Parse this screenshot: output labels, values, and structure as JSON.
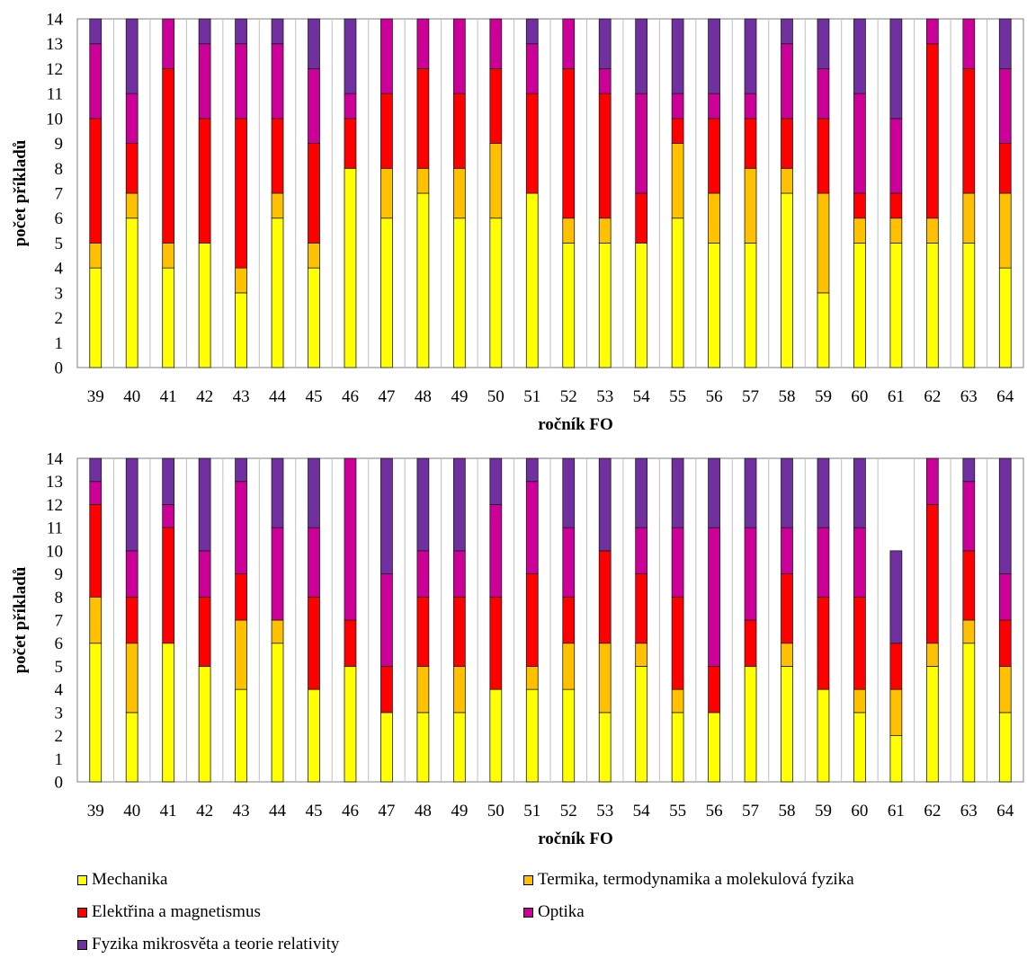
{
  "chart_data": [
    {
      "type": "bar",
      "stacked": true,
      "title": "",
      "xlabel": "ročník FO",
      "ylabel": "počet příkladů",
      "ylim": [
        0,
        14
      ],
      "yticks": [
        0,
        1,
        2,
        3,
        4,
        5,
        6,
        7,
        8,
        9,
        10,
        11,
        12,
        13,
        14
      ],
      "grid": "vertical",
      "categories": [
        "39",
        "40",
        "41",
        "42",
        "43",
        "44",
        "45",
        "46",
        "47",
        "48",
        "49",
        "50",
        "51",
        "52",
        "53",
        "54",
        "55",
        "56",
        "57",
        "58",
        "59",
        "60",
        "61",
        "62",
        "63",
        "64"
      ],
      "series": [
        {
          "name": "Mechanika",
          "values": [
            4,
            6,
            4,
            5,
            3,
            6,
            4,
            8,
            6,
            7,
            6,
            6,
            7,
            5,
            5,
            5,
            6,
            5,
            5,
            7,
            3,
            5,
            5,
            5,
            5,
            4
          ]
        },
        {
          "name": "Termika, termodynamika a molekulová fyzika",
          "values": [
            1,
            1,
            1,
            0,
            1,
            1,
            1,
            0,
            2,
            1,
            2,
            3,
            0,
            1,
            1,
            0,
            3,
            2,
            3,
            1,
            4,
            1,
            1,
            1,
            2,
            3
          ]
        },
        {
          "name": "Elektřina a magnetismus",
          "values": [
            5,
            2,
            7,
            5,
            6,
            3,
            4,
            2,
            3,
            4,
            3,
            3,
            4,
            6,
            5,
            2,
            1,
            3,
            2,
            2,
            3,
            1,
            1,
            7,
            5,
            2
          ]
        },
        {
          "name": "Optika",
          "values": [
            3,
            2,
            2,
            3,
            3,
            3,
            3,
            1,
            3,
            2,
            3,
            2,
            2,
            2,
            1,
            4,
            1,
            1,
            1,
            3,
            2,
            4,
            3,
            1,
            2,
            3
          ]
        },
        {
          "name": "Fyzika mikrosvěta a teorie relativity",
          "values": [
            1,
            3,
            0,
            1,
            1,
            1,
            2,
            3,
            0,
            0,
            0,
            0,
            1,
            0,
            2,
            3,
            3,
            3,
            3,
            1,
            2,
            3,
            4,
            0,
            0,
            2
          ]
        }
      ]
    },
    {
      "type": "bar",
      "stacked": true,
      "title": "",
      "xlabel": "ročník FO",
      "ylabel": "počet příkladů",
      "ylim": [
        0,
        14
      ],
      "yticks": [
        0,
        1,
        2,
        3,
        4,
        5,
        6,
        7,
        8,
        9,
        10,
        11,
        12,
        13,
        14
      ],
      "grid": "vertical",
      "categories": [
        "39",
        "40",
        "41",
        "42",
        "43",
        "44",
        "45",
        "46",
        "47",
        "48",
        "49",
        "50",
        "51",
        "52",
        "53",
        "54",
        "55",
        "56",
        "57",
        "58",
        "59",
        "60",
        "61",
        "62",
        "63",
        "64"
      ],
      "series": [
        {
          "name": "Mechanika",
          "values": [
            6,
            3,
            6,
            5,
            4,
            6,
            4,
            5,
            3,
            3,
            3,
            4,
            4,
            4,
            3,
            5,
            3,
            3,
            5,
            5,
            4,
            3,
            2,
            5,
            6,
            3
          ]
        },
        {
          "name": "Termika, termodynamika a molekulová fyzika",
          "values": [
            2,
            3,
            0,
            0,
            3,
            1,
            0,
            0,
            0,
            2,
            2,
            0,
            1,
            2,
            3,
            1,
            1,
            0,
            0,
            1,
            0,
            1,
            2,
            1,
            1,
            2
          ]
        },
        {
          "name": "Elektřina a magnetismus",
          "values": [
            4,
            2,
            5,
            3,
            2,
            0,
            4,
            2,
            2,
            3,
            3,
            4,
            4,
            2,
            4,
            3,
            4,
            2,
            2,
            3,
            4,
            4,
            2,
            6,
            3,
            2
          ]
        },
        {
          "name": "Optika",
          "values": [
            1,
            2,
            1,
            2,
            4,
            4,
            3,
            7,
            4,
            2,
            2,
            4,
            4,
            3,
            0,
            2,
            3,
            6,
            4,
            2,
            3,
            3,
            0,
            2,
            3,
            2
          ]
        },
        {
          "name": "Fyzika mikrosvěta a teorie relativity",
          "values": [
            1,
            4,
            2,
            4,
            1,
            3,
            3,
            0,
            5,
            4,
            4,
            2,
            1,
            3,
            4,
            3,
            3,
            3,
            3,
            3,
            3,
            3,
            4,
            0,
            1,
            5
          ]
        }
      ]
    }
  ],
  "colors": {
    "Mechanika": "#ffff00",
    "Termika, termodynamika a molekulová fyzika": "#ffc000",
    "Elektřina a magnetismus": "#ff0000",
    "Optika": "#cc0099",
    "Fyzika mikrosvěta a teorie relativity": "#7030a0"
  },
  "legend": {
    "placement": "bottom",
    "items": [
      "Mechanika",
      "Termika, termodynamika a molekulová fyzika",
      "Elektřina a magnetismus",
      "Optika",
      "Fyzika mikrosvěta a teorie relativity"
    ]
  }
}
